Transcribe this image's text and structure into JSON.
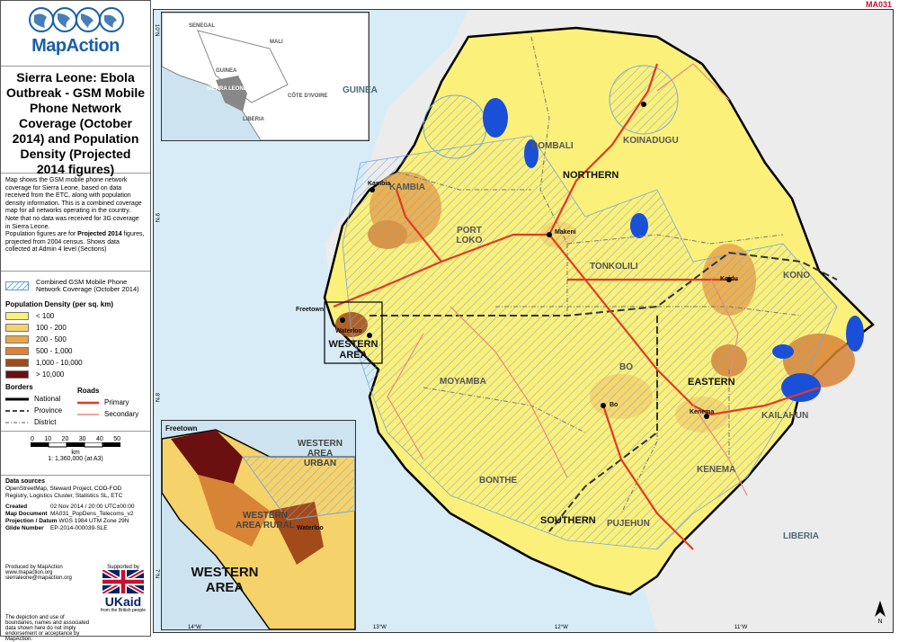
{
  "map_code": "MA031",
  "logo_text": "MapAction",
  "title": "Sierra Leone: Ebola Outbreak - GSM Mobile Phone Network Coverage (October 2014) and Population Density (Projected 2014 figures)",
  "description": [
    "Map shows the GSM mobile phone network coverage for Sierra Leone, based on data received from the ETC, along with population density information. This is a combined coverage map for all networks operating in the country.",
    "Note that no data was received for 3G coverage in Sierra Leone.",
    "Population figures are for",
    "Projected 2014",
    "figures, projected from 2004 census. Shows data collected at Admin 4 level (Sections)"
  ],
  "legend": {
    "coverage_label": "Combined GSM Mobile Phone Network Coverage (October 2014)",
    "density_title": "Population Density (per sq. km)",
    "classes": [
      {
        "label": "< 100",
        "color": "#fbf07a"
      },
      {
        "label": "100 - 200",
        "color": "#f6d36a"
      },
      {
        "label": "200 - 500",
        "color": "#e9a54a"
      },
      {
        "label": "500 - 1,000",
        "color": "#d88436"
      },
      {
        "label": "1,000 - 10,000",
        "color": "#a24a1a"
      },
      {
        "label": "> 10,000",
        "color": "#6a1010"
      }
    ],
    "borders_title": "Borders",
    "borders": [
      "National",
      "Province",
      "District"
    ],
    "roads_title": "Roads",
    "roads": [
      "Primary",
      "Secondary"
    ]
  },
  "scale": {
    "ticks": [
      "0",
      "10",
      "20",
      "30",
      "40",
      "50"
    ],
    "unit": "km",
    "ratio": "1: 1,360,000 (at A3)"
  },
  "meta": {
    "sources_title": "Data sources",
    "sources": "OpenStreetMap, Steward Project, COD-FOD Registry, Logistics Cluster, Statistics SL, ETC",
    "created_label": "Created",
    "created": "02 Nov 2014 / 20:00   UTC±00:00",
    "doc_label": "Map Document",
    "doc": "MA031_PopDens_Telecoms_v2",
    "proj_label": "Projection / Datum",
    "proj": "WGS 1984 UTM Zone 29N",
    "glide_label": "Glide Number",
    "glide": "EP-2014-000039-SLE"
  },
  "producer": "Produced by MapAction\nwww.mapaction.org\nsierraleone@mapaction.org",
  "supported_by": "Supported by",
  "ukaid": "UKaid",
  "ukaid_sub": "from the British people",
  "disclaimer": "The depiction and use of boundaries, names and associated data shown here do not imply endorsement or acceptance by MapAction.",
  "map_labels": {
    "guinea": "GUINEA",
    "liberia": "LIBERIA",
    "northern": "NORTHERN",
    "southern": "SOUTHERN",
    "eastern": "EASTERN",
    "western_area": "WESTERN AREA",
    "bombali": "BOMBALI",
    "koinadugu": "KOINADUGU",
    "kambia": "KAMBIA",
    "port_loko": "PORT LOKO",
    "tonkolili": "TONKOLILI",
    "kono": "KONO",
    "moyamba": "MOYAMBA",
    "bo": "BO",
    "kenema": "KENEMA",
    "kailahun": "KAILAHUN",
    "bonthe": "BONTHE",
    "pujehun": "PUJEHUN",
    "freetown": "Freetown",
    "waterloo": "Waterloo",
    "makeni": "Makeni",
    "koidu": "Koidu",
    "bo_town": "Bo",
    "kenema_town": "Kenema",
    "kambia_town": "Kambia",
    "lon_ticks": [
      "14°W",
      "13°W",
      "12°W",
      "11°W"
    ],
    "lat_ticks": [
      "10°N",
      "9°N",
      "8°N",
      "7°N"
    ]
  },
  "inset_overview": {
    "senegal": "SENEGAL",
    "mali": "MALI",
    "guinea": "GUINEA",
    "sierra_leone": "SIERRA LEONE",
    "cote": "CÔTE D'IVOIRE",
    "liberia": "LIBERIA"
  },
  "inset_western": {
    "freetown": "Freetown",
    "waterloo": "Waterloo",
    "urban": "WESTERN AREA URBAN",
    "rural": "WESTERN AREA RURAL",
    "title": "WESTERN AREA"
  },
  "north_arrow": "N"
}
